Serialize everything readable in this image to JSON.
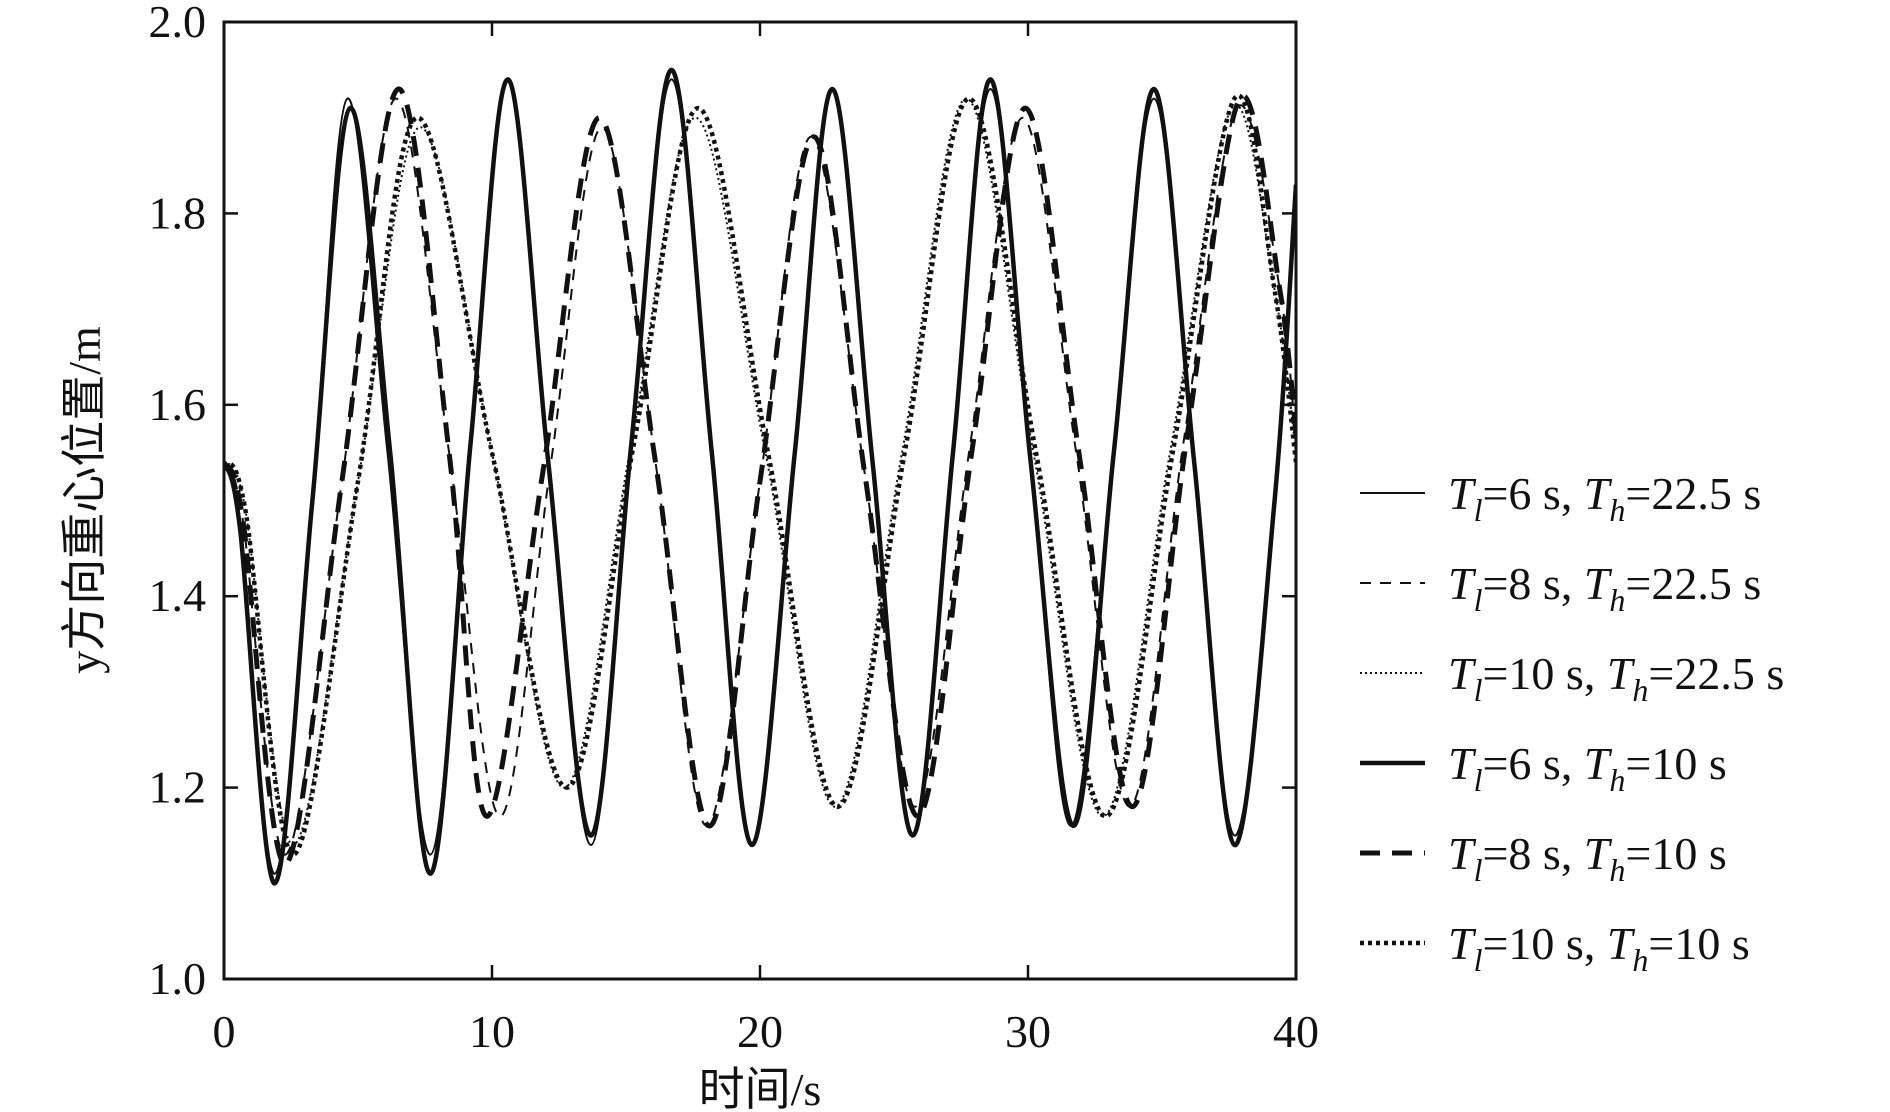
{
  "chart_data": {
    "type": "line",
    "xlabel": "时间/s",
    "ylabel": "y方向重心位置/m",
    "xlim": [
      0,
      40
    ],
    "ylim": [
      1.0,
      2.0
    ],
    "xticks": [
      0,
      10,
      20,
      30,
      40
    ],
    "yticks": [
      1.0,
      1.2,
      1.4,
      1.6,
      1.8,
      2.0
    ],
    "xtick_labels": [
      "0",
      "10",
      "20",
      "30",
      "40"
    ],
    "ytick_labels": [
      "1.0",
      "1.2",
      "1.4",
      "1.6",
      "1.8",
      "2.0"
    ],
    "grid": false,
    "legend_position": "right",
    "series": [
      {
        "name": "Tl=6 s, Th=22.5 s",
        "legend": {
          "t1": "T",
          "s1": "l",
          "t2": "=6 s, ",
          "t3": "T",
          "s2": "h",
          "t4": "=22.5 s"
        },
        "style": "thin-solid",
        "color": "#111111",
        "x": [
          0,
          0.6,
          1.9,
          3.3,
          4.6,
          6.1,
          7.7,
          9.2,
          10.6,
          12.1,
          13.7,
          15.2,
          16.7,
          18.2,
          19.7,
          21.3,
          22.7,
          24.2,
          25.7,
          27.2,
          28.6,
          30.1,
          31.6,
          33.2,
          34.7,
          36.2,
          37.7,
          39.2,
          40.0
        ],
        "y": [
          1.54,
          1.47,
          1.11,
          1.5,
          1.92,
          1.55,
          1.13,
          1.56,
          1.94,
          1.54,
          1.14,
          1.56,
          1.94,
          1.55,
          1.14,
          1.55,
          1.93,
          1.54,
          1.15,
          1.55,
          1.93,
          1.54,
          1.16,
          1.55,
          1.92,
          1.54,
          1.15,
          1.5,
          1.83
        ]
      },
      {
        "name": "Tl=8 s, Th=22.5 s",
        "legend": {
          "t1": "T",
          "s1": "l",
          "t2": "=8 s, ",
          "t3": "T",
          "s2": "h",
          "t4": "=22.5 s"
        },
        "style": "thin-dash",
        "color": "#111111",
        "x": [
          0,
          0.7,
          2.3,
          4.4,
          6.4,
          8.4,
          10.3,
          12.2,
          14.1,
          16.1,
          18.0,
          20.0,
          21.9,
          23.9,
          25.8,
          27.8,
          29.8,
          31.8,
          33.8,
          35.8,
          37.8,
          39.4,
          40.0
        ],
        "y": [
          1.54,
          1.48,
          1.13,
          1.52,
          1.92,
          1.55,
          1.17,
          1.54,
          1.89,
          1.54,
          1.16,
          1.52,
          1.88,
          1.53,
          1.18,
          1.55,
          1.9,
          1.55,
          1.18,
          1.56,
          1.91,
          1.72,
          1.56
        ]
      },
      {
        "name": "Tl=10 s, Th=22.5 s",
        "legend": {
          "t1": "T",
          "s1": "l",
          "t2": "=10 s, ",
          "t3": "T",
          "s2": "h",
          "t4": "=22.5 s"
        },
        "style": "thin-dot",
        "color": "#111111",
        "x": [
          0,
          0.8,
          2.6,
          5.0,
          7.3,
          10.0,
          12.7,
          15.2,
          17.6,
          20.2,
          22.8,
          25.3,
          27.7,
          30.2,
          32.8,
          35.3,
          37.6,
          39.2,
          40.0
        ],
        "y": [
          1.54,
          1.49,
          1.14,
          1.52,
          1.89,
          1.55,
          1.2,
          1.56,
          1.9,
          1.55,
          1.18,
          1.55,
          1.92,
          1.55,
          1.17,
          1.55,
          1.91,
          1.72,
          1.55
        ]
      },
      {
        "name": "Tl=6 s, Th=10 s",
        "legend": {
          "t1": "T",
          "s1": "l",
          "t2": "=6 s, ",
          "t3": "T",
          "s2": "h",
          "t4": "=10 s"
        },
        "style": "thick-solid",
        "color": "#111111",
        "x": [
          0,
          0.6,
          1.9,
          3.3,
          4.7,
          6.2,
          7.7,
          9.2,
          10.6,
          12.1,
          13.7,
          15.2,
          16.7,
          18.2,
          19.7,
          21.3,
          22.7,
          24.2,
          25.7,
          27.2,
          28.6,
          30.1,
          31.7,
          33.2,
          34.7,
          36.2,
          37.7,
          39.2,
          40.0
        ],
        "y": [
          1.54,
          1.47,
          1.1,
          1.5,
          1.91,
          1.55,
          1.11,
          1.56,
          1.94,
          1.54,
          1.15,
          1.56,
          1.95,
          1.55,
          1.14,
          1.55,
          1.93,
          1.54,
          1.15,
          1.55,
          1.94,
          1.54,
          1.16,
          1.55,
          1.93,
          1.54,
          1.14,
          1.5,
          1.83
        ]
      },
      {
        "name": "Tl=8 s, Th=10 s",
        "legend": {
          "t1": "T",
          "s1": "l",
          "t2": "=8 s, ",
          "t3": "T",
          "s2": "h",
          "t4": "=10 s"
        },
        "style": "thick-dash",
        "color": "#111111",
        "x": [
          0,
          0.7,
          2.3,
          4.4,
          6.5,
          8.4,
          9.8,
          11.9,
          14.0,
          16.1,
          18.1,
          20.0,
          22.0,
          23.9,
          25.9,
          27.9,
          29.9,
          31.9,
          33.9,
          35.9,
          37.9,
          39.4,
          40.0
        ],
        "y": [
          1.54,
          1.48,
          1.12,
          1.52,
          1.93,
          1.55,
          1.17,
          1.53,
          1.9,
          1.54,
          1.16,
          1.52,
          1.88,
          1.53,
          1.17,
          1.55,
          1.91,
          1.55,
          1.18,
          1.56,
          1.92,
          1.72,
          1.57
        ]
      },
      {
        "name": "Tl=10 s, Th=10 s",
        "legend": {
          "t1": "T",
          "s1": "l",
          "t2": "=10 s, ",
          "t3": "T",
          "s2": "h",
          "t4": "=10 s"
        },
        "style": "thick-dot",
        "color": "#111111",
        "x": [
          0,
          0.8,
          2.6,
          5.0,
          7.2,
          10.0,
          12.8,
          15.3,
          17.7,
          20.3,
          22.9,
          25.4,
          27.8,
          30.3,
          32.9,
          35.4,
          37.7,
          39.2,
          40.0
        ],
        "y": [
          1.54,
          1.49,
          1.13,
          1.52,
          1.9,
          1.55,
          1.2,
          1.56,
          1.91,
          1.55,
          1.18,
          1.55,
          1.92,
          1.55,
          1.17,
          1.55,
          1.92,
          1.72,
          1.54
        ]
      }
    ]
  }
}
